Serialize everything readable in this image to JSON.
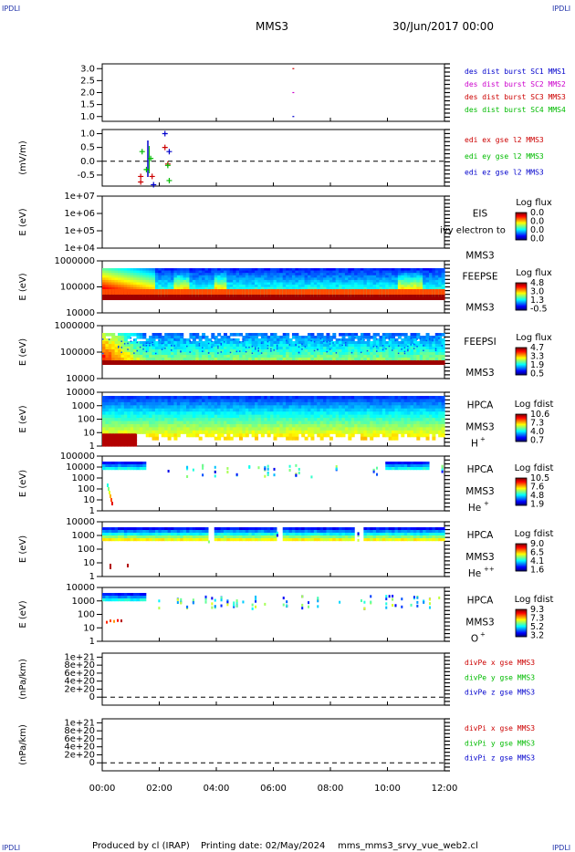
{
  "header": {
    "corner_left_top": "IPDLI",
    "corner_right_top": "IPDLI",
    "corner_left_bottom": "IPDLI",
    "corner_right_bottom": "IPDLI",
    "spacecraft": "MMS3",
    "date_time": "30/Jun/2017 00:00"
  },
  "footer": {
    "produced_by": "Produced by cl (IRAP)",
    "printing_date": "Printing date: 02/May/2024",
    "filename": "mms_mms3_srvy_vue_web2.cl"
  },
  "chart_data": [
    {
      "id": "des-dist-burst",
      "type": "scatter",
      "yticks": [
        "3.0",
        "2.5",
        "2.0",
        "1.5",
        "1.0"
      ],
      "ylim": [
        0.8,
        3.2
      ],
      "legend": [
        {
          "label": "des dist burst SC1 MMS1",
          "color": "#0000cc"
        },
        {
          "label": "des dist burst SC2 MMS2",
          "color": "#cc00cc"
        },
        {
          "label": "des dist burst SC3 MMS3",
          "color": "#cc0000"
        },
        {
          "label": "des dist burst SC4 MMS4",
          "color": "#00bb00"
        }
      ],
      "points": [
        {
          "x": 6.7,
          "y": 3.0,
          "series": 2
        },
        {
          "x": 6.7,
          "y": 2.0,
          "series": 1
        },
        {
          "x": 6.7,
          "y": 1.0,
          "series": 0
        }
      ]
    },
    {
      "id": "edi-e-gse",
      "type": "scatter",
      "ylabel": "(mV/m)",
      "yticks": [
        "1.0",
        "0.5",
        "0.0",
        "-0.5"
      ],
      "ylim": [
        -0.9,
        1.15
      ],
      "zero_line": true,
      "legend": [
        {
          "label": "edi ex gse l2 MMS3",
          "color": "#cc0000"
        },
        {
          "label": "edi ey gse l2 MMS3",
          "color": "#00bb00"
        },
        {
          "label": "edi ez gse l2 MMS3",
          "color": "#0000cc"
        }
      ],
      "points": [
        {
          "x": 1.35,
          "y": -0.55,
          "series": 0
        },
        {
          "x": 1.35,
          "y": -0.75,
          "series": 0
        },
        {
          "x": 1.75,
          "y": -0.55,
          "series": 0
        },
        {
          "x": 2.2,
          "y": 0.5,
          "series": 0
        },
        {
          "x": 2.3,
          "y": -0.1,
          "series": 0
        },
        {
          "x": 1.4,
          "y": 0.35,
          "series": 1
        },
        {
          "x": 1.55,
          "y": -0.3,
          "series": 1
        },
        {
          "x": 1.7,
          "y": 0.1,
          "series": 1
        },
        {
          "x": 2.3,
          "y": -0.15,
          "series": 1
        },
        {
          "x": 2.35,
          "y": -0.7,
          "series": 1
        },
        {
          "x": 2.2,
          "y": 1.0,
          "series": 2
        },
        {
          "x": 2.35,
          "y": 0.35,
          "series": 2
        },
        {
          "x": 1.8,
          "y": -0.85,
          "series": 2
        }
      ]
    },
    {
      "id": "eis",
      "type": "heatmap",
      "ylabel": "E (eV)",
      "yticks": [
        "1e+07",
        "1e+06",
        "1e+05",
        "1e+04"
      ],
      "instrument": "EIS",
      "instrument_sc": "MMS3",
      "species": "",
      "overlay_text": "ivy electron to",
      "colorbar_title": "Log flux",
      "colorbar_ticks": [
        "0.0",
        "0.0",
        "0.0",
        "0.0"
      ],
      "empty": true
    },
    {
      "id": "feepse",
      "type": "heatmap",
      "ylabel": "E (eV)",
      "yticks": [
        "1000000",
        "100000",
        "10000"
      ],
      "instrument": "FEEPSE",
      "instrument_sc": "MMS3",
      "species": "",
      "colorbar_title": "Log flux",
      "colorbar_ticks": [
        "4.8",
        "3.0",
        "1.3",
        "-0.5"
      ]
    },
    {
      "id": "feepsi",
      "type": "heatmap",
      "ylabel": "E (eV)",
      "yticks": [
        "1000000",
        "100000",
        "10000"
      ],
      "instrument": "FEEPSI",
      "instrument_sc": "MMS3",
      "species": "",
      "colorbar_title": "Log flux",
      "colorbar_ticks": [
        "4.7",
        "3.3",
        "1.9",
        "0.5"
      ]
    },
    {
      "id": "hpca-h",
      "type": "heatmap",
      "ylabel": "E (eV)",
      "yticks": [
        "10000",
        "1000",
        "100",
        "10",
        "1"
      ],
      "instrument": "HPCA",
      "instrument_sc": "MMS3",
      "species": "H",
      "species_sup": "+",
      "colorbar_title": "Log fdist",
      "colorbar_ticks": [
        "10.6",
        "7.3",
        "4.0",
        "0.7"
      ]
    },
    {
      "id": "hpca-he",
      "type": "heatmap",
      "ylabel": "E (eV)",
      "yticks": [
        "100000",
        "10000",
        "1000",
        "100",
        "10",
        "1"
      ],
      "instrument": "HPCA",
      "instrument_sc": "MMS3",
      "species": "He",
      "species_sup": "+",
      "colorbar_title": "Log fdist",
      "colorbar_ticks": [
        "10.5",
        "7.6",
        "4.8",
        "1.9"
      ]
    },
    {
      "id": "hpca-he2",
      "type": "heatmap",
      "ylabel": "E (eV)",
      "yticks": [
        "10000",
        "1000",
        "100",
        "10",
        "1"
      ],
      "instrument": "HPCA",
      "instrument_sc": "MMS3",
      "species": "He",
      "species_sup": "++",
      "colorbar_title": "Log fdist",
      "colorbar_ticks": [
        "9.0",
        "6.5",
        "4.1",
        "1.6"
      ]
    },
    {
      "id": "hpca-o",
      "type": "heatmap",
      "ylabel": "E (eV)",
      "yticks": [
        "10000",
        "1000",
        "100",
        "10",
        "1"
      ],
      "instrument": "HPCA",
      "instrument_sc": "MMS3",
      "species": "O",
      "species_sup": "+",
      "colorbar_title": "Log fdist",
      "colorbar_ticks": [
        "9.3",
        "7.3",
        "5.2",
        "3.2"
      ]
    },
    {
      "id": "divpe",
      "type": "line",
      "ylabel": "(nPa/km)",
      "yticks": [
        "1e+21",
        "8e+20",
        "6e+20",
        "4e+20",
        "2e+20",
        "0"
      ],
      "ylim": [
        -2e+20,
        1.1e+21
      ],
      "zero_line": true,
      "legend": [
        {
          "label": "divPe x gse MMS3",
          "color": "#cc0000"
        },
        {
          "label": "divPe y gse MMS3",
          "color": "#00bb00"
        },
        {
          "label": "divPe z gse MMS3",
          "color": "#0000cc"
        }
      ]
    },
    {
      "id": "divpi",
      "type": "line",
      "ylabel": "(nPa/km)",
      "yticks": [
        "1e+21",
        "8e+20",
        "6e+20",
        "4e+20",
        "2e+20",
        "0"
      ],
      "ylim": [
        -2e+20,
        1.1e+21
      ],
      "zero_line": true,
      "legend": [
        {
          "label": "divPi x gse MMS3",
          "color": "#cc0000"
        },
        {
          "label": "divPi y gse MMS3",
          "color": "#00bb00"
        },
        {
          "label": "divPi z gse MMS3",
          "color": "#0000cc"
        }
      ]
    }
  ],
  "x_axis": {
    "ticks": [
      "00:00",
      "02:00",
      "04:00",
      "06:00",
      "08:00",
      "10:00",
      "12:00"
    ],
    "xlim": [
      0,
      12
    ]
  }
}
